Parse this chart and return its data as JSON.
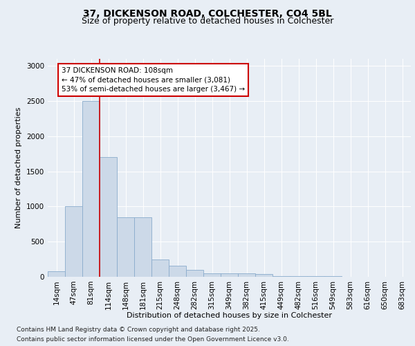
{
  "title_line1": "37, DICKENSON ROAD, COLCHESTER, CO4 5BL",
  "title_line2": "Size of property relative to detached houses in Colchester",
  "xlabel": "Distribution of detached houses by size in Colchester",
  "ylabel": "Number of detached properties",
  "categories": [
    "14sqm",
    "47sqm",
    "81sqm",
    "114sqm",
    "148sqm",
    "181sqm",
    "215sqm",
    "248sqm",
    "282sqm",
    "315sqm",
    "349sqm",
    "382sqm",
    "415sqm",
    "449sqm",
    "482sqm",
    "516sqm",
    "549sqm",
    "583sqm",
    "616sqm",
    "650sqm",
    "683sqm"
  ],
  "values": [
    75,
    1000,
    2500,
    1700,
    850,
    850,
    250,
    155,
    95,
    50,
    50,
    45,
    40,
    5,
    5,
    5,
    5,
    3,
    2,
    2,
    2
  ],
  "bar_color": "#ccd9e8",
  "bar_edge_color": "#8aabcc",
  "annotation_text_line1": "37 DICKENSON ROAD: 108sqm",
  "annotation_text_line2": "← 47% of detached houses are smaller (3,081)",
  "annotation_text_line3": "53% of semi-detached houses are larger (3,467) →",
  "annotation_box_color": "#ffffff",
  "annotation_box_edge": "#cc0000",
  "vline_color": "#cc0000",
  "background_color": "#e8eef5",
  "plot_bg_color": "#e8eef5",
  "footer_line1": "Contains HM Land Registry data © Crown copyright and database right 2025.",
  "footer_line2": "Contains public sector information licensed under the Open Government Licence v3.0.",
  "ylim": [
    0,
    3100
  ],
  "yticks": [
    0,
    500,
    1000,
    1500,
    2000,
    2500,
    3000
  ],
  "grid_color": "#ffffff",
  "title_fontsize": 10,
  "subtitle_fontsize": 9,
  "axis_label_fontsize": 8,
  "tick_fontsize": 7.5,
  "annotation_fontsize": 7.5,
  "footer_fontsize": 6.5
}
